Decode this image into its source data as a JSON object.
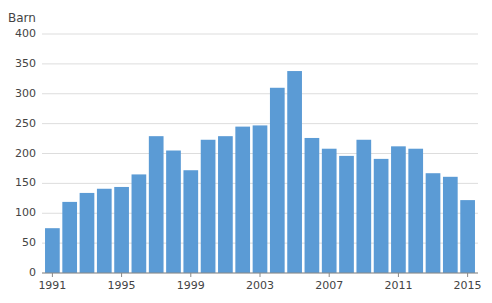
{
  "chart_data": {
    "type": "bar",
    "ylabel": "Barn",
    "x": [
      1991,
      1992,
      1993,
      1994,
      1995,
      1996,
      1997,
      1998,
      1999,
      2000,
      2001,
      2002,
      2003,
      2004,
      2005,
      2006,
      2007,
      2008,
      2009,
      2010,
      2011,
      2012,
      2013,
      2014,
      2015
    ],
    "values": [
      75,
      119,
      134,
      141,
      144,
      165,
      229,
      205,
      172,
      223,
      229,
      245,
      247,
      310,
      338,
      226,
      208,
      196,
      223,
      191,
      212,
      208,
      167,
      161,
      122
    ],
    "color": "#5b9bd5",
    "xlim": [
      1990.4,
      2015.6
    ],
    "xticks": [
      1991,
      1995,
      1999,
      2003,
      2007,
      2011,
      2015
    ],
    "ylim": [
      0,
      400
    ],
    "yticks": [
      0,
      50,
      100,
      150,
      200,
      250,
      300,
      350,
      400
    ],
    "grid": true
  }
}
